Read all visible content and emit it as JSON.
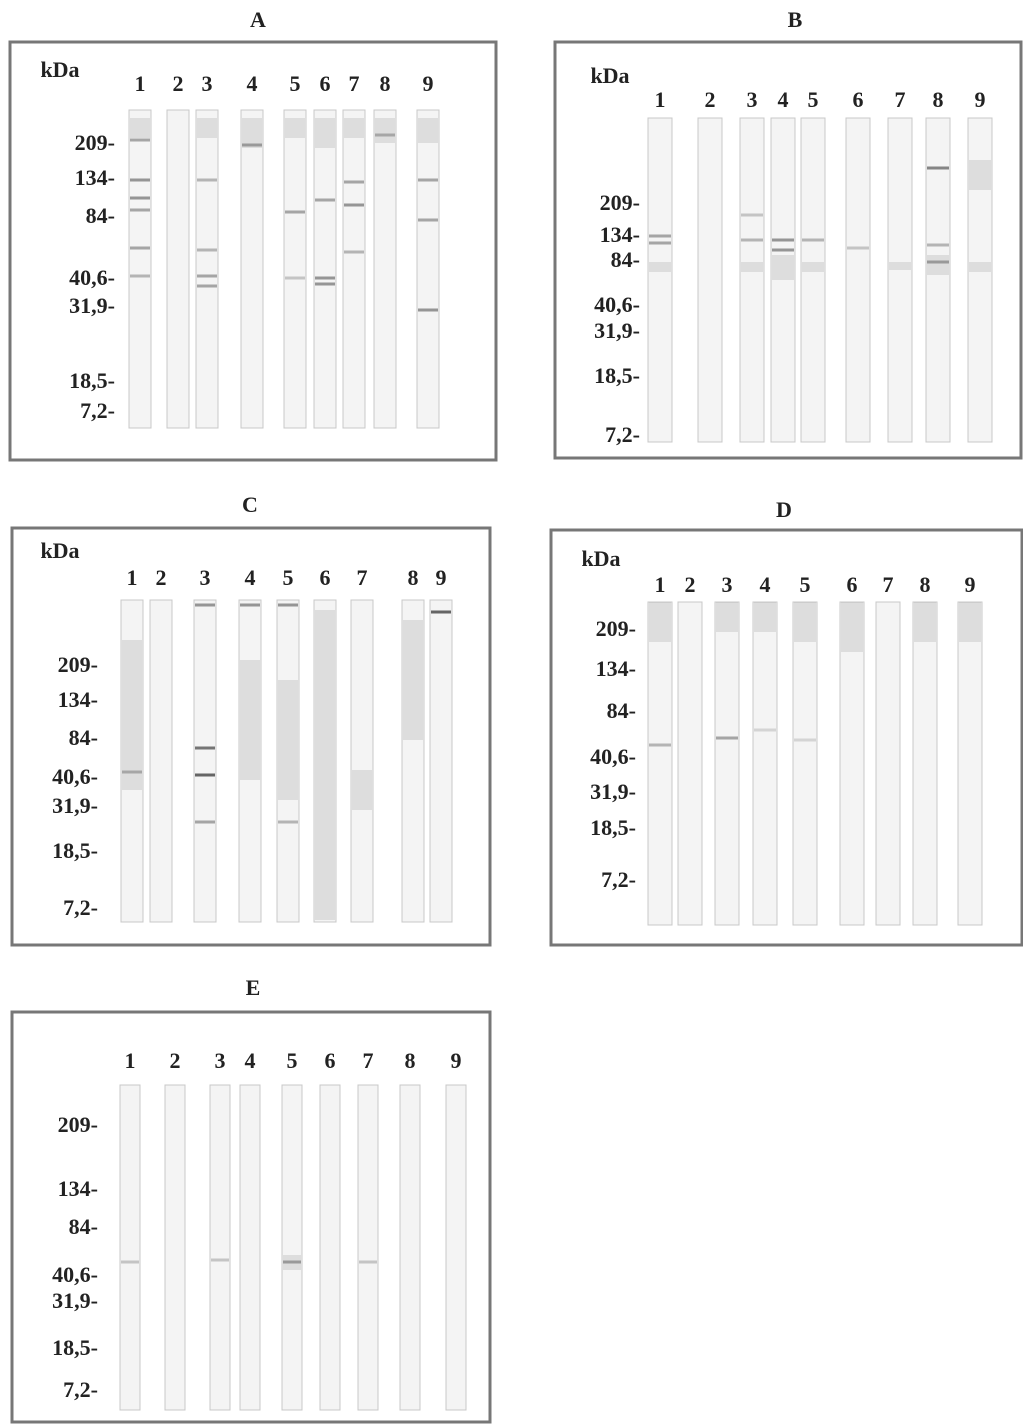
{
  "panels": [
    {
      "label": "A",
      "unit": "kDa",
      "lanes": [
        "1",
        "2",
        "3",
        "4",
        "5",
        "6",
        "7",
        "8",
        "9"
      ],
      "markers": [
        "209-",
        "134-",
        "84-",
        "40,6-",
        "31,9-",
        "18,5-",
        "7,2-"
      ]
    },
    {
      "label": "B",
      "unit": "kDa",
      "lanes": [
        "1",
        "2",
        "3",
        "4",
        "5",
        "6",
        "7",
        "8",
        "9"
      ],
      "markers": [
        "209-",
        "134-",
        "84-",
        "40,6-",
        "31,9-",
        "18,5-",
        "7,2-"
      ]
    },
    {
      "label": "C",
      "unit": "kDa",
      "lanes": [
        "1",
        "2",
        "3",
        "4",
        "5",
        "6",
        "7",
        "8",
        "9"
      ],
      "markers": [
        "209-",
        "134-",
        "84-",
        "40,6-",
        "31,9-",
        "18,5-",
        "7,2-"
      ]
    },
    {
      "label": "D",
      "unit": "kDa",
      "lanes": [
        "1",
        "2",
        "3",
        "4",
        "5",
        "6",
        "7",
        "8",
        "9"
      ],
      "markers": [
        "209-",
        "134-",
        "84-",
        "40,6-",
        "31,9-",
        "18,5-",
        "7,2-"
      ]
    },
    {
      "label": "E",
      "lanes": [
        "1",
        "2",
        "3",
        "4",
        "5",
        "6",
        "7",
        "8",
        "9"
      ],
      "markers": [
        "209-",
        "134-",
        "84-",
        "40,6-",
        "31,9-",
        "18,5-",
        "7,2-"
      ]
    }
  ]
}
